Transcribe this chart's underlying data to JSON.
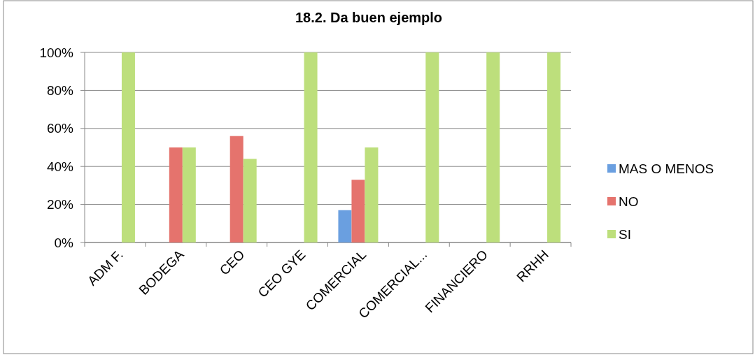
{
  "chart_data": {
    "type": "bar",
    "title": "18.2. Da buen ejemplo",
    "categories": [
      "ADM F.",
      "BODEGA",
      "CEO",
      "CEO GYE",
      "COMERCIAL",
      "COMERCIAL...",
      "FINANCIERO",
      "RRHH"
    ],
    "series": [
      {
        "name": "MAS O MENOS",
        "color": "#6a9fe0",
        "values": [
          null,
          null,
          null,
          null,
          17,
          null,
          null,
          null
        ]
      },
      {
        "name": "NO",
        "color": "#e5736d",
        "values": [
          null,
          50,
          56,
          null,
          33,
          null,
          null,
          null
        ]
      },
      {
        "name": "SI",
        "color": "#bddf7c",
        "values": [
          100,
          50,
          44,
          100,
          50,
          100,
          100,
          100
        ]
      }
    ],
    "ylim": [
      0,
      100
    ],
    "yticks": [
      {
        "value": 0,
        "label": "0%"
      },
      {
        "value": 20,
        "label": "20%"
      },
      {
        "value": 40,
        "label": "40%"
      },
      {
        "value": 60,
        "label": "60%"
      },
      {
        "value": 80,
        "label": "80%"
      },
      {
        "value": 100,
        "label": "100%"
      }
    ],
    "grid": "y",
    "legend": "right"
  }
}
